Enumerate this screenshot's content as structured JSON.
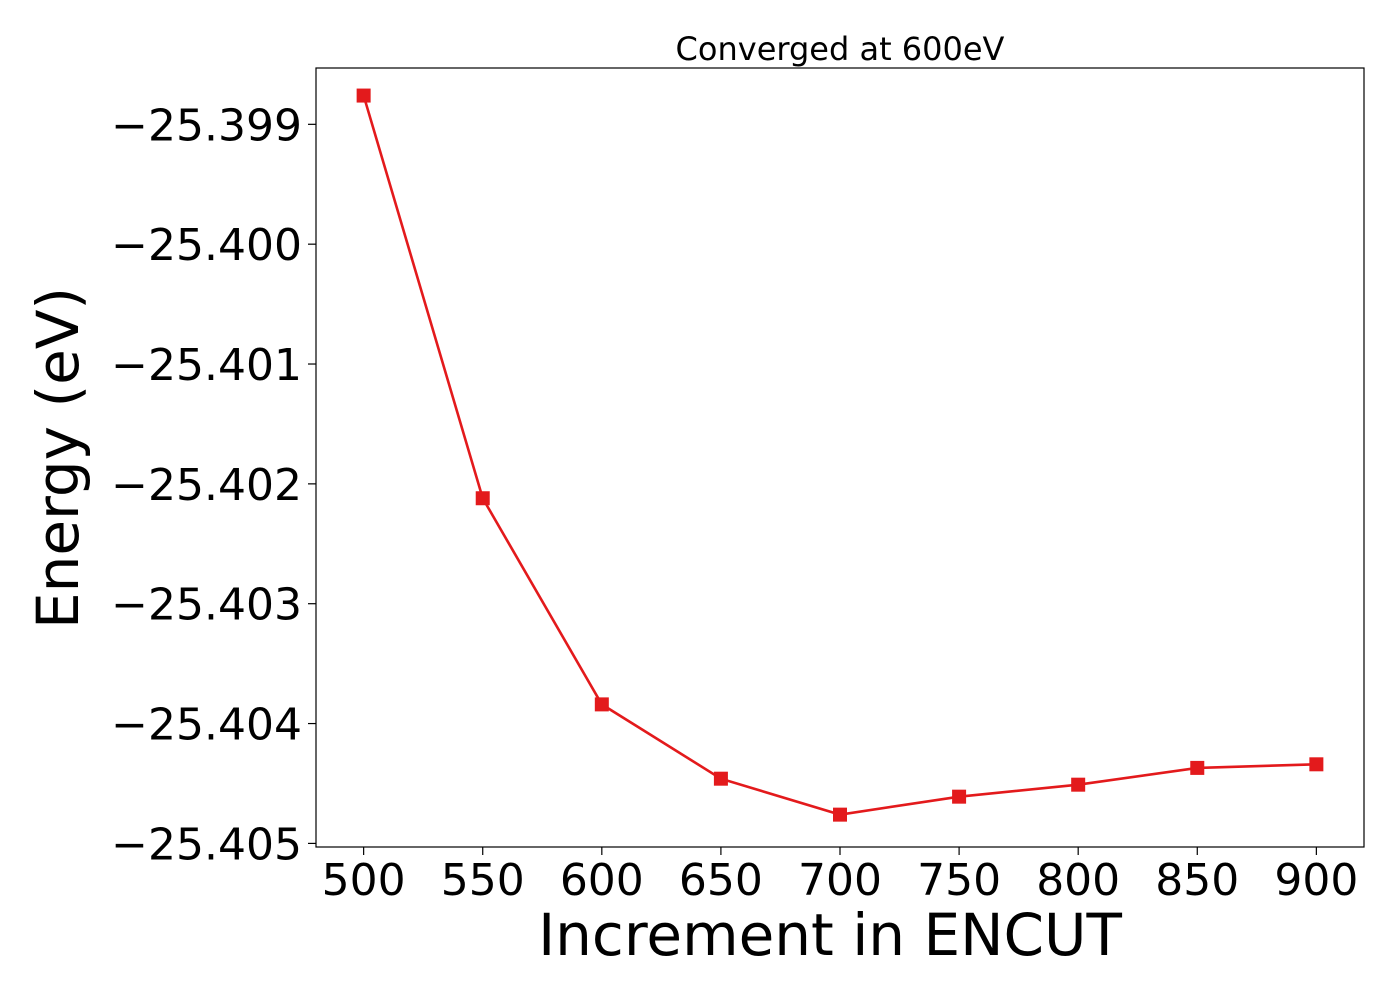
{
  "chart_data": {
    "type": "line",
    "title": "Converged at 600eV",
    "xlabel": "Increment in ENCUT",
    "ylabel": "Energy (eV)",
    "x": [
      500,
      550,
      600,
      650,
      700,
      750,
      800,
      850,
      900
    ],
    "x_ticks": [
      "500",
      "550",
      "600",
      "650",
      "700",
      "750",
      "800",
      "850",
      "900"
    ],
    "y_ticks": [
      -25.399,
      -25.4,
      -25.401,
      -25.402,
      -25.403,
      -25.404,
      -25.405
    ],
    "y_tick_labels": [
      "−25.399",
      "−25.400",
      "−25.401",
      "−25.402",
      "−25.403",
      "−25.404",
      "−25.405"
    ],
    "xlim": [
      480,
      920
    ],
    "ylim": [
      -25.40503,
      -25.39853
    ],
    "series": [
      {
        "values": [
          -25.39876,
          -25.40212,
          -25.40384,
          -25.40446,
          -25.40476,
          -25.40461,
          -25.40451,
          -25.40437,
          -25.40434
        ],
        "color": "#e31a1c",
        "marker": "square"
      }
    ],
    "grid": false,
    "legend": "none"
  }
}
